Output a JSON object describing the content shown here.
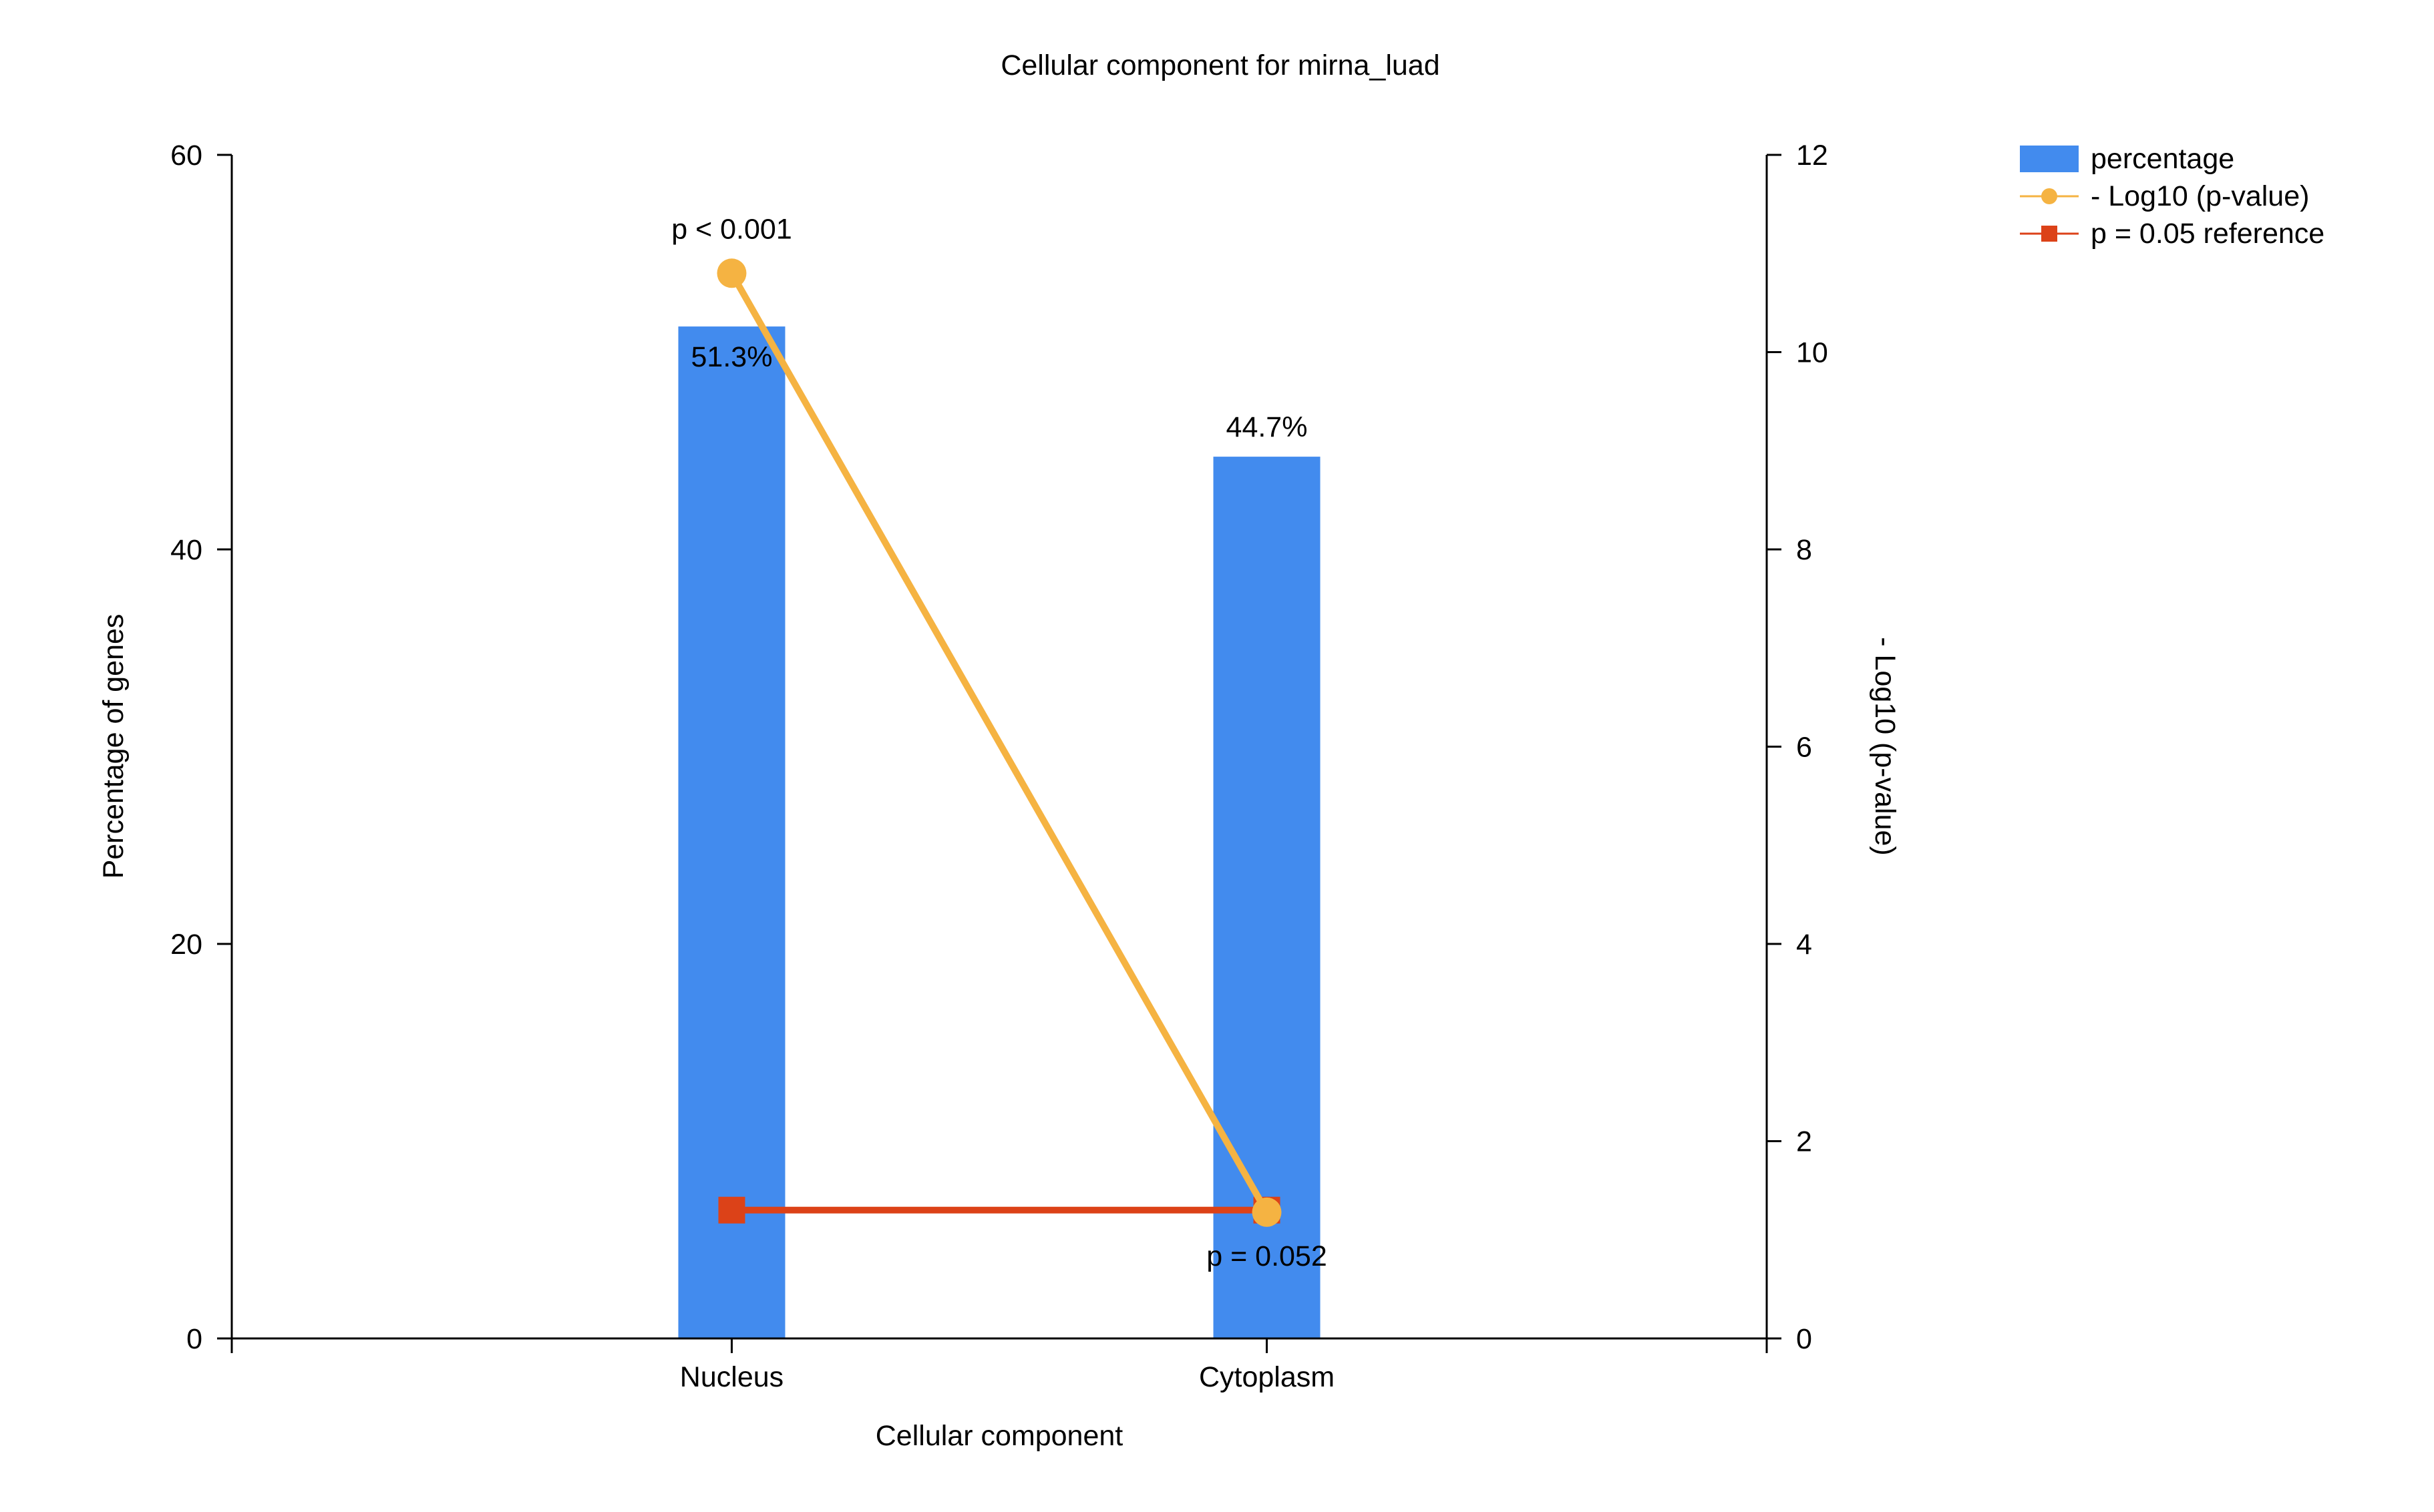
{
  "chart_data": {
    "type": "bar",
    "title": "Cellular component for mirna_luad",
    "xlabel": "Cellular component",
    "ylabel": "Percentage of genes",
    "y2label": "- Log10 (p-value)",
    "categories": [
      "Nucleus",
      "Cytoplasm"
    ],
    "ylim": [
      0,
      60
    ],
    "y2lim": [
      0,
      12
    ],
    "yticks": [
      "0",
      "20",
      "40",
      "60"
    ],
    "y2ticks": [
      "0",
      "2",
      "4",
      "6",
      "8",
      "10",
      "12"
    ],
    "grid": false,
    "legend_position": "top-right",
    "series": [
      {
        "name": "percentage",
        "kind": "bar",
        "axis": "left",
        "color": "#428BEE",
        "values": [
          51.3,
          44.7
        ],
        "labels": [
          "51.3%",
          "44.7%"
        ]
      },
      {
        "name": "- Log10 (p-value)",
        "kind": "line",
        "axis": "right",
        "marker": "circle",
        "color": "#F5B342",
        "values": [
          10.8,
          1.28
        ],
        "labels": [
          "p < 0.001",
          "p = 0.052"
        ]
      },
      {
        "name": "p = 0.05 reference",
        "kind": "line",
        "axis": "right",
        "marker": "square",
        "color": "#DC4218",
        "values": [
          1.301,
          1.301
        ]
      }
    ]
  }
}
